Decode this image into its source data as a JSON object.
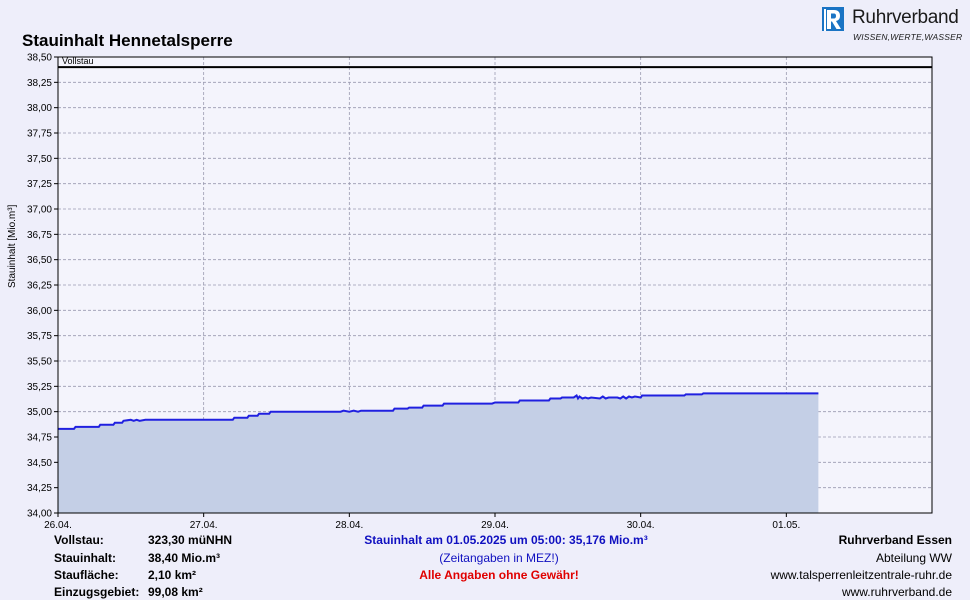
{
  "header": {
    "title": "Stauinhalt Hennetalsperre",
    "logo_name": "Ruhrverband",
    "logo_tagline": "WISSEN,WERTE,WASSER",
    "logo_color": "#1a74c4"
  },
  "chart_data": {
    "type": "area",
    "ylabel": "Stauinhalt [Mio.m³]",
    "ylim": [
      34.0,
      38.5
    ],
    "yticks": [
      "34,00",
      "34,25",
      "34,50",
      "34,75",
      "35,00",
      "35,25",
      "35,50",
      "35,75",
      "36,00",
      "36,25",
      "36,50",
      "36,75",
      "37,00",
      "37,25",
      "37,50",
      "37,75",
      "38,00",
      "38,25",
      "38,50"
    ],
    "xticks": [
      "26.04.",
      "27.04.",
      "28.04.",
      "29.04.",
      "30.04.",
      "01.05."
    ],
    "x_unit": "days since 26.04. 00:00",
    "xlim": [
      0,
      6
    ],
    "grid": true,
    "reference_line": {
      "label": "Vollstau",
      "value": 38.4
    },
    "line_color": "#2020e0",
    "fill_color": "#c4cfe6",
    "series": [
      {
        "values_x": [
          0.0,
          0.11,
          0.12,
          0.28,
          0.29,
          0.38,
          0.39,
          0.44,
          0.45,
          0.5,
          0.52,
          0.54,
          0.56,
          0.6,
          0.61,
          1.2,
          1.21,
          1.3,
          1.31,
          1.37,
          1.38,
          1.45,
          1.46,
          1.94,
          1.96,
          2.0,
          2.03,
          2.06,
          2.08,
          2.3,
          2.31,
          2.4,
          2.41,
          2.5,
          2.51,
          2.64,
          2.65,
          2.98,
          3.0,
          3.16,
          3.17,
          3.37,
          3.38,
          3.45,
          3.46,
          3.54,
          3.56,
          3.57,
          3.58,
          3.6,
          3.62,
          3.64,
          3.66,
          3.72,
          3.74,
          3.76,
          3.78,
          3.84,
          3.86,
          3.88,
          3.9,
          3.92,
          3.94,
          3.96,
          4.0,
          4.01,
          4.3,
          4.31,
          4.42,
          4.43,
          5.22
        ],
        "values_y": [
          34.83,
          34.83,
          34.85,
          34.85,
          34.87,
          34.87,
          34.89,
          34.89,
          34.91,
          34.92,
          34.91,
          34.92,
          34.91,
          34.92,
          34.92,
          34.92,
          34.94,
          34.94,
          34.96,
          34.96,
          34.98,
          34.98,
          35.0,
          35.0,
          35.01,
          35.0,
          35.01,
          35.0,
          35.01,
          35.01,
          35.03,
          35.03,
          35.04,
          35.04,
          35.06,
          35.06,
          35.08,
          35.08,
          35.09,
          35.09,
          35.11,
          35.11,
          35.13,
          35.13,
          35.14,
          35.14,
          35.16,
          35.13,
          35.15,
          35.13,
          35.14,
          35.13,
          35.14,
          35.13,
          35.15,
          35.13,
          35.14,
          35.14,
          35.13,
          35.15,
          35.13,
          35.15,
          35.14,
          35.15,
          35.14,
          35.16,
          35.16,
          35.17,
          35.17,
          35.18,
          35.18
        ]
      }
    ]
  },
  "footer": {
    "left_labels": [
      "Vollstau:",
      "Stauinhalt:",
      "Staufläche:",
      "Einzugsgebiet:"
    ],
    "left_values": [
      "323,30 müNHN",
      "38,40 Mio.m³",
      "2,10 km²",
      "99,08 km²"
    ],
    "center_status": "Stauinhalt am 01.05.2025 um 05:00:  35,176 Mio.m³",
    "center_note": "(Zeitangaben in MEZ!)",
    "center_warning": "Alle Angaben ohne Gewähr!",
    "right_lines": [
      "Ruhrverband Essen",
      "Abteilung WW",
      "www.talsperrenleitzentrale-ruhr.de",
      "www.ruhrverband.de"
    ],
    "status_color": "#1010c0",
    "warning_color": "#e00000"
  }
}
